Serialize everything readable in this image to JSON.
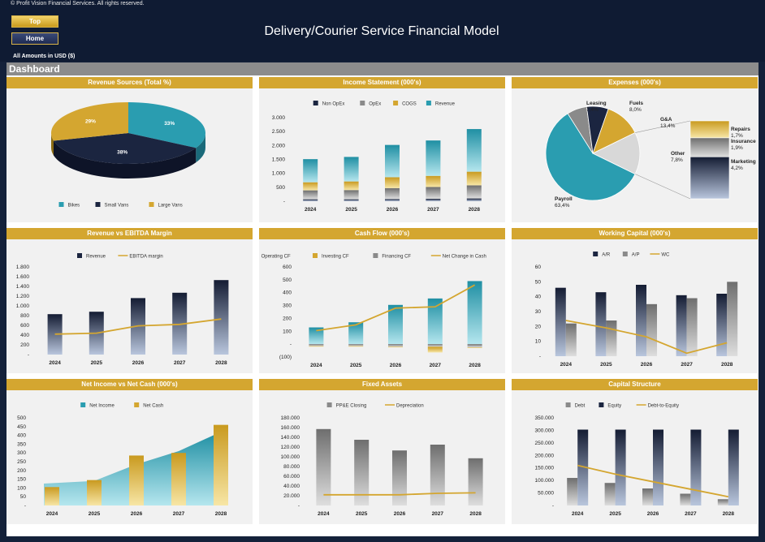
{
  "header": {
    "copyright": "© Profit Vision Financial Services. All rights reserved.",
    "top_button": "Top",
    "home_button": "Home",
    "title": "Delivery/Courier Service Financial Model",
    "amounts_label": "All Amounts in  USD ($)",
    "dashboard_label": "Dashboard"
  },
  "colors": {
    "gold": "#d4a630",
    "teal": "#2a9db0",
    "navy": "#1b2540",
    "gray": "#8a8a8a",
    "line": "#d4a630"
  },
  "chart_data": [
    {
      "id": "revenue-sources",
      "type": "pie",
      "title": "Revenue Sources (Total %)",
      "labels": [
        "Bikes",
        "Small Vans",
        "Large Vans"
      ],
      "values": [
        33,
        38,
        29
      ],
      "value_labels": [
        "33%",
        "38%",
        "29%"
      ]
    },
    {
      "id": "income-statement",
      "type": "bar",
      "title": "Income Statement (000's)",
      "categories": [
        "2024",
        "2025",
        "2026",
        "2027",
        "2028"
      ],
      "series": [
        {
          "name": "Non OpEx",
          "values": [
            70,
            70,
            80,
            90,
            100
          ]
        },
        {
          "name": "OpEx",
          "values": [
            320,
            330,
            390,
            420,
            470
          ]
        },
        {
          "name": "COGS",
          "values": [
            290,
            310,
            390,
            400,
            490
          ]
        },
        {
          "name": "Revenue",
          "values": [
            830,
            880,
            1160,
            1270,
            1530
          ]
        }
      ],
      "ylim": [
        0,
        3000
      ],
      "yticks": [
        "-",
        "500",
        "1.000",
        "1.500",
        "2.000",
        "2.500",
        "3.000"
      ]
    },
    {
      "id": "expenses",
      "type": "pie",
      "title": "Expenses (000's)",
      "labels": [
        "Payroll",
        "Leasing",
        "Fuels",
        "G&A",
        "Other",
        "Repairs",
        "Insurance",
        "Marketing"
      ],
      "values": [
        63.4,
        7.4,
        8.0,
        13.4,
        7.8,
        1.7,
        1.9,
        4.2
      ],
      "value_labels": [
        "63,4%",
        "7,4%",
        "8,0%",
        "13,4%",
        "7,8%",
        "1,7%",
        "1,9%",
        "4,2%"
      ]
    },
    {
      "id": "revenue-vs-ebitda",
      "type": "bar",
      "title": "Revenue vs EBITDA Margin",
      "categories": [
        "2024",
        "2025",
        "2026",
        "2027",
        "2028"
      ],
      "series": [
        {
          "name": "Revenue",
          "values": [
            830,
            880,
            1160,
            1270,
            1530
          ]
        },
        {
          "name": "EBITDA margin",
          "values": [
            420,
            440,
            590,
            620,
            730
          ]
        }
      ],
      "ylim": [
        0,
        1800
      ],
      "yticks": [
        "-",
        "200",
        "400",
        "600",
        "800",
        "1.000",
        "1.200",
        "1.400",
        "1.600",
        "1.800"
      ]
    },
    {
      "id": "cash-flow",
      "type": "bar",
      "title": "Cash Flow (000's)",
      "categories": [
        "2024",
        "2025",
        "2026",
        "2027",
        "2028"
      ],
      "series": [
        {
          "name": "Operating CF",
          "values": [
            130,
            170,
            305,
            355,
            490
          ]
        },
        {
          "name": "Investing CF",
          "values": [
            -5,
            -5,
            -5,
            -45,
            -5
          ]
        },
        {
          "name": "Financing CF",
          "values": [
            -15,
            -15,
            -20,
            -20,
            -25
          ]
        },
        {
          "name": "Net Change in Cash",
          "values": [
            105,
            150,
            280,
            290,
            460
          ]
        }
      ],
      "ylim": [
        -100,
        600
      ],
      "yticks": [
        "(100)",
        "-",
        "100",
        "200",
        "300",
        "400",
        "500",
        "600"
      ]
    },
    {
      "id": "working-capital",
      "type": "bar",
      "title": "Working Capital (000's)",
      "categories": [
        "2024",
        "2025",
        "2026",
        "2027",
        "2028"
      ],
      "series": [
        {
          "name": "A/R",
          "values": [
            46,
            43,
            48,
            41,
            42
          ]
        },
        {
          "name": "A/P",
          "values": [
            22,
            24,
            35,
            39,
            50
          ]
        },
        {
          "name": "WC",
          "values": [
            24,
            19,
            13,
            2,
            9
          ]
        }
      ],
      "ylim": [
        0,
        60
      ],
      "yticks": [
        "-",
        "10",
        "20",
        "30",
        "40",
        "50",
        "60"
      ]
    },
    {
      "id": "net-income-vs-cash",
      "type": "bar",
      "title": "Net Income vs Net Cash (000's)",
      "categories": [
        "2024",
        "2025",
        "2026",
        "2027",
        "2028"
      ],
      "series": [
        {
          "name": "Net Income",
          "values": [
            125,
            140,
            235,
            310,
            420
          ]
        },
        {
          "name": "Net Cash",
          "values": [
            105,
            145,
            285,
            300,
            460
          ]
        }
      ],
      "ylim": [
        0,
        500
      ],
      "yticks": [
        "-",
        "50",
        "100",
        "150",
        "200",
        "250",
        "300",
        "350",
        "400",
        "450",
        "500"
      ]
    },
    {
      "id": "fixed-assets",
      "type": "bar",
      "title": "Fixed Assets",
      "categories": [
        "2024",
        "2025",
        "2026",
        "2027",
        "2028"
      ],
      "series": [
        {
          "name": "PP&E Closing",
          "values": [
            157000,
            135000,
            113000,
            125000,
            97000
          ]
        },
        {
          "name": "Depreciation",
          "values": [
            22000,
            22000,
            22000,
            25000,
            26000
          ]
        }
      ],
      "ylim": [
        0,
        180000
      ],
      "yticks": [
        "-",
        "20.000",
        "40.000",
        "60.000",
        "80.000",
        "100.000",
        "120.000",
        "140.000",
        "160.000",
        "180.000"
      ]
    },
    {
      "id": "capital-structure",
      "type": "bar",
      "title": "Capital Structure",
      "categories": [
        "2024",
        "2025",
        "2026",
        "2027",
        "2028"
      ],
      "series": [
        {
          "name": "Debt",
          "values": [
            110000,
            90000,
            68000,
            47000,
            25000
          ]
        },
        {
          "name": "Equity",
          "values": [
            303000,
            303000,
            303000,
            303000,
            303000
          ]
        },
        {
          "name": "Debt-to-Equity",
          "values": [
            160000,
            125000,
            95000,
            65000,
            35000
          ]
        }
      ],
      "ylim": [
        0,
        350000
      ],
      "yticks": [
        "-",
        "50.000",
        "100.000",
        "150.000",
        "200.000",
        "250.000",
        "300.000",
        "350.000"
      ]
    }
  ]
}
